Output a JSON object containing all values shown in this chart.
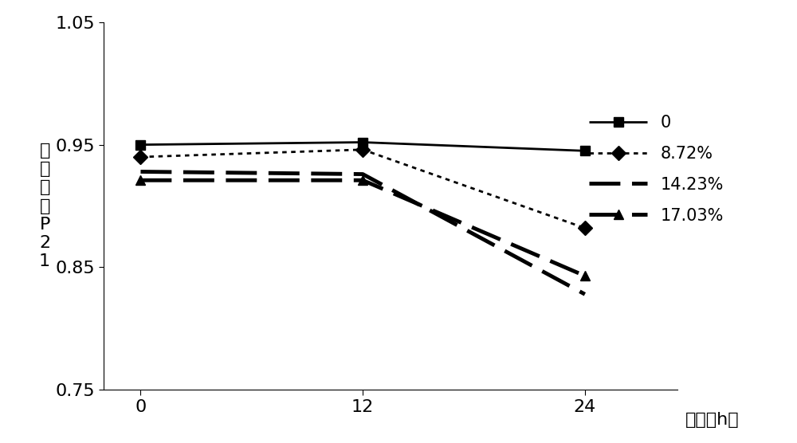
{
  "x": [
    0,
    12,
    24
  ],
  "series": [
    {
      "label": "0",
      "values": [
        0.95,
        0.952,
        0.945
      ]
    },
    {
      "label": "8.72%",
      "values": [
        0.94,
        0.946,
        0.882
      ]
    },
    {
      "label": "14.23%",
      "values": [
        0.928,
        0.926,
        0.828
      ]
    },
    {
      "label": "17.03%",
      "values": [
        0.921,
        0.921,
        0.843
      ]
    }
  ],
  "xlabel": "时间（h）",
  "ylabel_lines": [
    "峰",
    "面",
    "积",
    "比",
    "P",
    "2",
    "1"
  ],
  "ylim": [
    0.75,
    1.05
  ],
  "yticks": [
    0.75,
    0.85,
    0.95,
    1.05
  ],
  "xticks": [
    0,
    12,
    24
  ],
  "background_color": "#ffffff",
  "tick_fontsize": 16,
  "label_fontsize": 16,
  "legend_fontsize": 15
}
